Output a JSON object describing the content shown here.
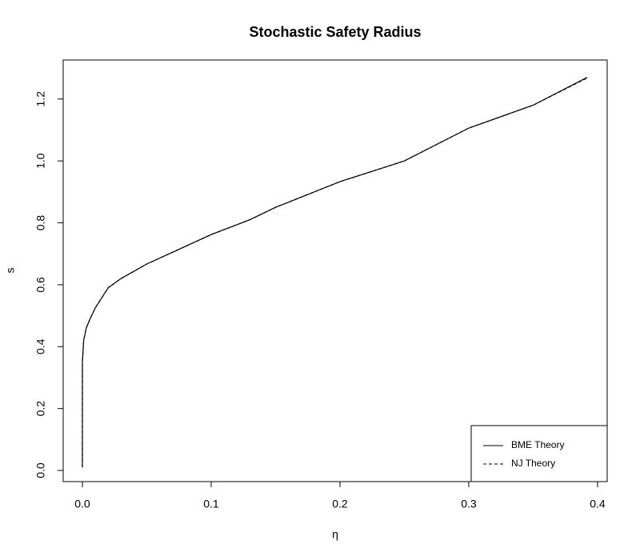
{
  "chart_data": {
    "type": "line",
    "title": "Stochastic Safety Radius",
    "x_label": "η",
    "y_label": "s",
    "x": [
      0,
      0,
      0.001,
      0.003,
      0.006,
      0.01,
      0.02,
      0.03,
      0.05,
      0.07,
      0.1,
      0.13,
      0.15,
      0.2,
      0.25,
      0.3,
      0.35,
      0.392
    ],
    "series": [
      {
        "name": "BME Theory",
        "color": "#000000",
        "dash": false,
        "values": [
          0.01,
          0.35,
          0.42,
          0.46,
          0.49,
          0.525,
          0.59,
          0.62,
          0.667,
          0.705,
          0.762,
          0.81,
          0.85,
          0.933,
          1.0,
          1.106,
          1.18,
          1.27
        ]
      },
      {
        "name": "NJ Theory",
        "color": "#000000",
        "dash": true,
        "values": [
          0.01,
          0.35,
          0.42,
          0.46,
          0.49,
          0.525,
          0.59,
          0.62,
          0.667,
          0.705,
          0.762,
          0.81,
          0.85,
          0.933,
          1.0,
          1.106,
          1.18,
          1.268
        ]
      }
    ],
    "xlim": [
      -0.0149,
      0.4075
    ],
    "ylim": [
      -0.036,
      1.326
    ],
    "xticks": [
      {
        "value": 0,
        "label": "0.0"
      },
      0.1,
      0.2,
      0.3,
      0.4
    ],
    "yticks": [
      {
        "value": 0,
        "label": "0.0"
      },
      0.2,
      0.4,
      0.6,
      0.8,
      {
        "value": 1,
        "label": "1.0"
      },
      1.2
    ],
    "legend": "bottom-right"
  }
}
